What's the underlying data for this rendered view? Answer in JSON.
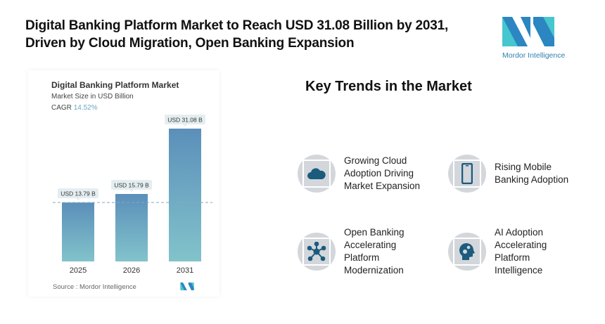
{
  "title_line1": "Digital Banking Platform Market to Reach USD 31.08 Billion by 2031,",
  "title_line2": "Driven by Cloud Migration, Open Banking Expansion",
  "logo": {
    "text": "Mordor Intelligence",
    "colors": [
      "#2b86c2",
      "#46c6cf"
    ]
  },
  "chart_data": {
    "type": "bar",
    "title": "Digital Banking Platform Market",
    "subtitle": "Market Size in USD Billion",
    "cagr_label": "CAGR",
    "cagr_value": "14.52%",
    "categories": [
      "2025",
      "2026",
      "2031"
    ],
    "values": [
      13.79,
      15.79,
      31.08
    ],
    "data_labels": [
      "USD 13.79 B",
      "USD 15.79 B",
      "USD 31.08 B"
    ],
    "ylim": [
      0,
      31.08
    ],
    "reference_line": 13.79,
    "grid": false,
    "colors": {
      "bar_top": "#5b8fba",
      "bar_bottom": "#82c3cb",
      "dashed": "#7fa9c9"
    },
    "source": "Source :  Mordor Intelligence"
  },
  "key_trends": {
    "heading": "Key Trends in the Market",
    "items": [
      {
        "icon": "cloud-icon",
        "label": "Growing Cloud Adoption Driving Market Expansion"
      },
      {
        "icon": "mobile-phone-icon",
        "label": "Rising Mobile Banking Adoption"
      },
      {
        "icon": "network-hub-icon",
        "label": "Open Banking Accelerating Platform Modernization"
      },
      {
        "icon": "ai-head-gears-icon",
        "label": "AI Adoption Accelerating Platform Intelligence"
      }
    ],
    "icon_color": "#1b5b7d"
  }
}
